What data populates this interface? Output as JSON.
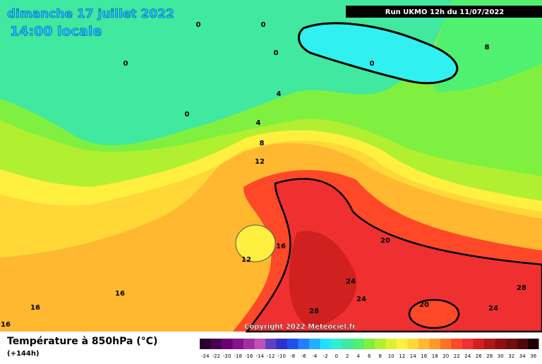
{
  "header": {
    "date": "dimanche 17 juillet 2022",
    "time": "14:00 locale",
    "run": "Run UKMO 12h du 11/07/2022"
  },
  "map": {
    "contour_labels": [
      0,
      0,
      0,
      0,
      0,
      0,
      4,
      4,
      8,
      8,
      12,
      16,
      12,
      16,
      16,
      16,
      20,
      24,
      24,
      28,
      24,
      28,
      20
    ],
    "copyright": "Copyright 2022 Meteociel.fr"
  },
  "footer": {
    "title": "Température à 850hPa (°C)",
    "lead": "(+144h)"
  },
  "scale": {
    "labels": [
      -24,
      -22,
      -20,
      -18,
      -16,
      -14,
      -12,
      -10,
      -8,
      -6,
      -4,
      -2,
      0,
      2,
      4,
      6,
      8,
      10,
      12,
      14,
      16,
      18,
      20,
      22,
      24,
      26,
      28,
      30,
      32,
      34,
      36
    ],
    "colors": [
      "#2a0030",
      "#4a0050",
      "#6a0070",
      "#8a1090",
      "#a030a0",
      "#c050b8",
      "#6040c0",
      "#3030d0",
      "#2050f0",
      "#2080ff",
      "#20b0ff",
      "#20e0ff",
      "#30f0d0",
      "#40e8a0",
      "#50f070",
      "#80f040",
      "#b0f030",
      "#e0f030",
      "#fff040",
      "#ffd838",
      "#ffb830",
      "#ff9828",
      "#ff7020",
      "#ff4828",
      "#f03030",
      "#d02020",
      "#b01818",
      "#901010",
      "#701010",
      "#500808",
      "#200000"
    ]
  }
}
